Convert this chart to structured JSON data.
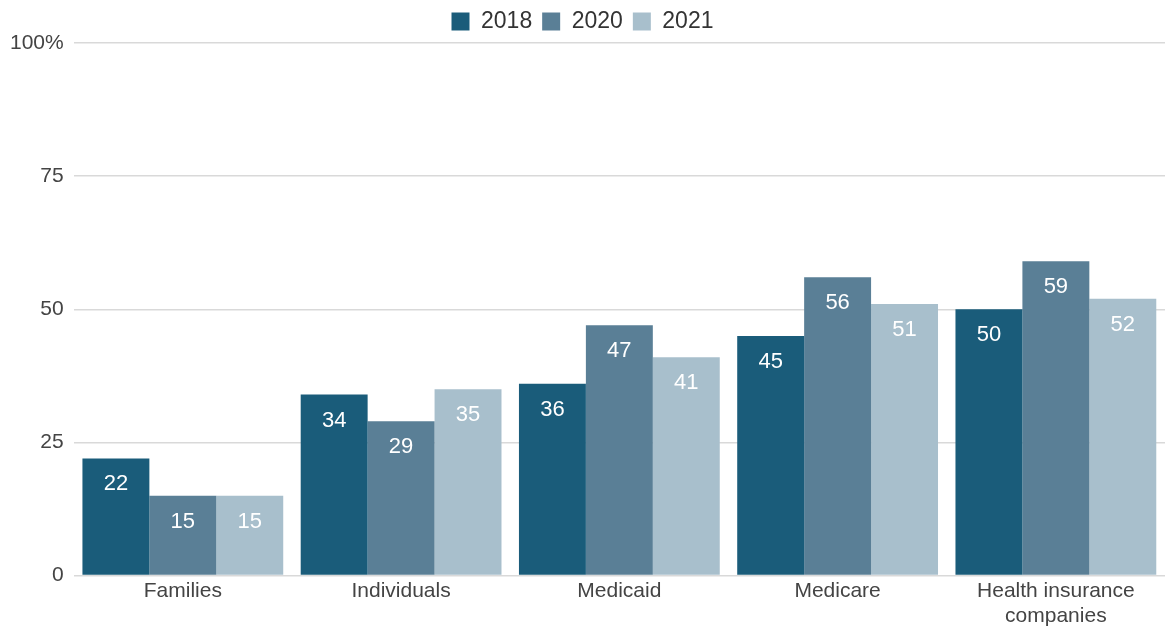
{
  "chart_data": {
    "type": "bar",
    "categories": [
      "Families",
      "Individuals",
      "Medicaid",
      "Medicare",
      "Health insurance companies"
    ],
    "series": [
      {
        "name": "2018",
        "color": "#1a5c7a",
        "values": [
          22,
          34,
          36,
          45,
          50
        ]
      },
      {
        "name": "2020",
        "color": "#5a7f96",
        "values": [
          15,
          29,
          47,
          56,
          59
        ]
      },
      {
        "name": "2021",
        "color": "#a8bfcc",
        "values": [
          15,
          35,
          41,
          51,
          52
        ]
      }
    ],
    "ylim": [
      0,
      100
    ],
    "yticks": [
      0,
      25,
      50,
      75,
      {
        "value": 100,
        "label": "100%"
      }
    ],
    "grid": "y",
    "legend": "top",
    "data_labels": true
  }
}
